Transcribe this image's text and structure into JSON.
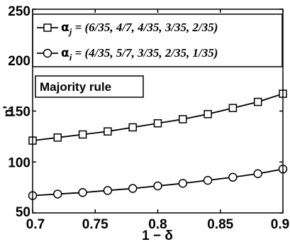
{
  "chart_data": {
    "type": "line",
    "title": "",
    "xlabel": "1 − δ",
    "ylabel": "n'",
    "xlim": [
      0.7,
      0.9
    ],
    "ylim": [
      50,
      250
    ],
    "xticks": [
      0.7,
      0.75,
      0.8,
      0.85,
      0.9
    ],
    "xtick_labels": [
      "0.7",
      "0.75",
      "0.8",
      "0.85",
      "0.9"
    ],
    "yticks": [
      50,
      100,
      150,
      200,
      250
    ],
    "ytick_labels": [
      "50",
      "100",
      "150",
      "200",
      "250"
    ],
    "grid": false,
    "legend_position": "top-left",
    "x": [
      0.7,
      0.72,
      0.74,
      0.76,
      0.78,
      0.8,
      0.82,
      0.84,
      0.86,
      0.88,
      0.9
    ],
    "series": [
      {
        "legend_symbol": "α",
        "legend_subscript": "j",
        "legend_text": " = (6/35, 4/7, 4/35, 3/35, 2/35)",
        "marker": "square",
        "values": [
          121,
          124,
          127,
          130,
          134,
          138,
          142,
          147,
          153,
          159,
          167
        ]
      },
      {
        "legend_symbol": "α",
        "legend_subscript": "i",
        "legend_text": " = (4/35, 5/7, 3/35, 2/35, 1/35)",
        "marker": "circle",
        "values": [
          67,
          68.5,
          70,
          72,
          74,
          76.5,
          79,
          82,
          85,
          88.5,
          93
        ]
      }
    ],
    "annotation": "Majority rule",
    "colors": {
      "line": "#000000",
      "marker_fill": "#ffffff",
      "background": "#ffffff"
    }
  }
}
